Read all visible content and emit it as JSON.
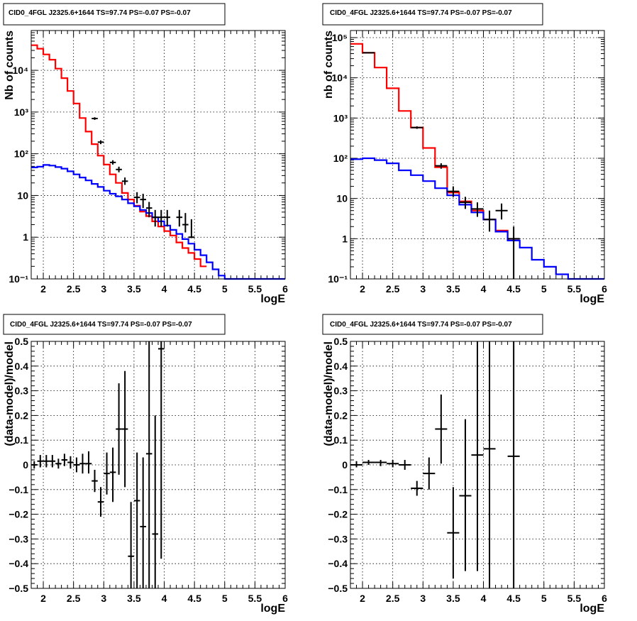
{
  "colors": {
    "model": "#ff0000",
    "component": "#0000ff",
    "data": "#000000"
  },
  "chart_data": [
    {
      "type": "line",
      "title": "CID0_4FGL J2325.6+1644 TS=97.74 PS=-0.07 PS=-0.07",
      "xlabel": "logE",
      "ylabel": "Nb of counts",
      "xlim": [
        1.8,
        6.0
      ],
      "ylim": [
        0.1,
        90000
      ],
      "yscale": "log",
      "grid": true,
      "xticks": [
        "2",
        "2.5",
        "3",
        "3.5",
        "4",
        "4.5",
        "5",
        "5.5",
        "6"
      ],
      "yticks": [
        "10⁻¹",
        "1",
        "10",
        "10²",
        "10³",
        "10⁴"
      ],
      "series": [
        {
          "role": "model",
          "style": "step",
          "bin_width": 0.1,
          "x": [
            1.8,
            1.9,
            2.0,
            2.1,
            2.2,
            2.3,
            2.4,
            2.5,
            2.6,
            2.7,
            2.8,
            2.9,
            3.0,
            3.1,
            3.2,
            3.3,
            3.4,
            3.5,
            3.6,
            3.7,
            3.8,
            3.9,
            4.0,
            4.1,
            4.2,
            4.3,
            4.4,
            4.5,
            4.6
          ],
          "y": [
            40000,
            33000,
            24000,
            18000,
            11000,
            6500,
            3200,
            1600,
            720,
            340,
            170,
            90,
            55,
            32,
            20,
            11.5,
            8,
            5.7,
            4.1,
            3.2,
            2.4,
            1.8,
            1.4,
            1.1,
            0.75,
            0.55,
            0.42,
            0.3,
            0.2
          ]
        },
        {
          "role": "component",
          "style": "step",
          "bin_width": 0.1,
          "x": [
            1.8,
            1.9,
            2.0,
            2.1,
            2.2,
            2.3,
            2.4,
            2.5,
            2.6,
            2.7,
            2.8,
            2.9,
            3.0,
            3.1,
            3.2,
            3.3,
            3.4,
            3.5,
            3.6,
            3.7,
            3.8,
            3.9,
            4.0,
            4.1,
            4.2,
            4.3,
            4.4,
            4.5,
            4.6,
            4.7,
            4.8,
            4.9,
            5.0,
            5.1,
            5.2,
            5.3,
            5.4,
            5.5,
            5.6,
            5.7,
            5.8,
            5.9
          ],
          "y": [
            47,
            49,
            54,
            52,
            48,
            44,
            38,
            32,
            27,
            23,
            19,
            16,
            13,
            11,
            9.5,
            8,
            6.5,
            5.5,
            4.5,
            3.8,
            3,
            2.4,
            1.9,
            1.5,
            1.2,
            0.9,
            0.7,
            0.5,
            0.37,
            0.25,
            0.17,
            0.12,
            0.1,
            0.1,
            0.1,
            0.1,
            0.1,
            0.1,
            0.1,
            0.1,
            0.1,
            0.1
          ]
        },
        {
          "role": "data",
          "style": "errorbar",
          "x_halfwidth": 0.05,
          "x": [
            3.85,
            3.95,
            4.05,
            4.25,
            4.35,
            4.45
          ],
          "y": [
            3,
            3,
            3,
            3,
            2,
            1
          ],
          "yerr": [
            [
              1.8,
              4.5
            ],
            [
              1.8,
              4.5
            ],
            [
              1.8,
              4.5
            ],
            [
              1.8,
              4.5
            ],
            [
              1.3,
              3.8
            ],
            [
              0.95,
              2.7
            ]
          ]
        },
        {
          "role": "data",
          "style": "errorbar",
          "x_halfwidth": 0.05,
          "x": [
            2.85,
            2.95,
            3.15,
            3.25,
            3.35,
            3.55,
            3.65,
            3.75
          ],
          "y": [
            700,
            190,
            62,
            42,
            22,
            9,
            8,
            5
          ],
          "yerr": [
            [
              650,
              750
            ],
            [
              170,
              210
            ],
            [
              55,
              70
            ],
            [
              36,
              49
            ],
            [
              18,
              27
            ],
            [
              6.5,
              12
            ],
            [
              5,
              11
            ],
            [
              3,
              7
            ]
          ]
        }
      ]
    },
    {
      "type": "line",
      "title": "CID0_4FGL J2325.6+1644 TS=97.74 PS=-0.07 PS=-0.07",
      "xlabel": "logE",
      "ylabel": "nb of counts",
      "xlim": [
        1.8,
        6.0
      ],
      "ylim": [
        0.1,
        150000
      ],
      "yscale": "log",
      "grid": true,
      "xticks": [
        "2",
        "2.5",
        "3",
        "3.5",
        "4",
        "4.5",
        "5",
        "5.5",
        "6"
      ],
      "yticks": [
        "10⁻¹",
        "1",
        "10",
        "10²",
        "10³",
        "10⁴",
        "10⁵"
      ],
      "series": [
        {
          "role": "model",
          "style": "step",
          "bin_width": 0.2,
          "x": [
            1.8,
            2.0,
            2.2,
            2.4,
            2.6,
            2.8,
            3.0,
            3.2,
            3.4,
            3.6,
            3.8,
            4.0,
            4.2,
            4.4
          ],
          "y": [
            70000,
            42000,
            18000,
            5500,
            1500,
            580,
            180,
            60,
            14,
            8.5,
            5,
            3,
            1.6,
            0.9
          ]
        },
        {
          "role": "component",
          "style": "step",
          "bin_width": 0.2,
          "x": [
            1.8,
            2.0,
            2.2,
            2.4,
            2.6,
            2.8,
            3.0,
            3.2,
            3.4,
            3.6,
            3.8,
            4.0,
            4.2,
            4.4,
            4.6,
            4.8,
            5.0,
            5.2,
            5.4,
            5.6,
            5.8
          ],
          "y": [
            95,
            100,
            90,
            75,
            50,
            38,
            27,
            18,
            12,
            7,
            4.5,
            3,
            1.5,
            0.9,
            0.6,
            0.3,
            0.2,
            0.13,
            0.1,
            0.1,
            0.1
          ]
        },
        {
          "role": "data",
          "style": "errorbar",
          "x_halfwidth": 0.1,
          "x": [
            2.1,
            2.9,
            3.3,
            3.5,
            3.7,
            3.9,
            4.1,
            4.3,
            4.5
          ],
          "y": [
            42000,
            580,
            65,
            15,
            8,
            5.5,
            3,
            5,
            1
          ],
          "yerr": [
            [
              41000,
              43000
            ],
            [
              540,
              620
            ],
            [
              55,
              75
            ],
            [
              11,
              20
            ],
            [
              5.5,
              11
            ],
            [
              3.5,
              8
            ],
            [
              1.5,
              5
            ],
            [
              3,
              7.5
            ],
            [
              0.1,
              2
            ]
          ]
        }
      ]
    },
    {
      "type": "line",
      "title": "CID0_4FGL J2325.6+1644 TS=97.74 PS=-0.07 PS=-0.07",
      "xlabel": "logE",
      "ylabel": "(data-model)/model",
      "xlim": [
        1.8,
        6.0
      ],
      "ylim": [
        -0.5,
        0.5
      ],
      "yscale": "linear",
      "grid": true,
      "xticks": [
        "2",
        "2.5",
        "3",
        "3.5",
        "4",
        "4.5",
        "5",
        "5.5",
        "6"
      ],
      "yticks": [
        "−0.5",
        "−0.4",
        "−0.3",
        "−0.2",
        "−0.1",
        "0",
        "0.1",
        "0.2",
        "0.3",
        "0.4",
        "0.5"
      ],
      "series": [
        {
          "role": "data",
          "style": "errorbar",
          "x_halfwidth": 0.05,
          "x": [
            1.85,
            1.95,
            2.05,
            2.15,
            2.25,
            2.35,
            2.45,
            2.55,
            2.65,
            2.75,
            2.85,
            2.95,
            3.05,
            3.15,
            3.25,
            3.35,
            3.45,
            3.55,
            3.65,
            3.75,
            3.85,
            3.95
          ],
          "y": [
            0.0,
            0.015,
            0.015,
            0.015,
            0.005,
            0.02,
            0.01,
            0.0,
            0.005,
            0.005,
            -0.065,
            -0.15,
            -0.035,
            -0.03,
            0.145,
            0.145,
            -0.37,
            -0.145,
            -0.25,
            0.045,
            -0.28,
            0.47
          ],
          "yerr": [
            [
              -0.015,
              0.015
            ],
            [
              -0.01,
              0.04
            ],
            [
              -0.01,
              0.04
            ],
            [
              -0.01,
              0.04
            ],
            [
              -0.015,
              0.025
            ],
            [
              -0.005,
              0.045
            ],
            [
              -0.015,
              0.035
            ],
            [
              -0.03,
              0.03
            ],
            [
              -0.035,
              0.045
            ],
            [
              -0.035,
              0.055
            ],
            [
              -0.11,
              -0.02
            ],
            [
              -0.21,
              -0.09
            ],
            [
              -0.12,
              0.05
            ],
            [
              -0.15,
              0.07
            ],
            [
              -0.04,
              0.33
            ],
            [
              -0.09,
              0.38
            ],
            [
              -0.5,
              -0.15
            ],
            [
              -0.5,
              0.05
            ],
            [
              -0.5,
              0.03
            ],
            [
              -0.5,
              0.5
            ],
            [
              -0.5,
              0.2
            ],
            [
              -0.38,
              0.5
            ]
          ]
        }
      ]
    },
    {
      "type": "line",
      "title": "CID0_4FGL J2325.6+1644 TS=97.74 PS=-0.07 PS=-0.07",
      "xlabel": "logE",
      "ylabel": "(data-model)/model",
      "xlim": [
        1.8,
        6.0
      ],
      "ylim": [
        -0.5,
        0.5
      ],
      "yscale": "linear",
      "grid": true,
      "xticks": [
        "2",
        "2.5",
        "3",
        "3.5",
        "4",
        "4.5",
        "5",
        "5.5",
        "6"
      ],
      "yticks": [
        "−0.5",
        "−0.4",
        "−0.3",
        "−0.2",
        "−0.1",
        "0",
        "0.1",
        "0.2",
        "0.3",
        "0.4",
        "0.5"
      ],
      "series": [
        {
          "role": "data",
          "style": "errorbar",
          "x_halfwidth": 0.1,
          "x": [
            1.9,
            2.1,
            2.3,
            2.5,
            2.7,
            2.9,
            3.1,
            3.3,
            3.5,
            3.7,
            3.9,
            4.1,
            4.5
          ],
          "y": [
            0.0,
            0.01,
            0.01,
            0.005,
            0.0,
            -0.095,
            -0.035,
            0.145,
            -0.275,
            -0.125,
            0.04,
            0.065,
            0.035
          ],
          "yerr": [
            [
              -0.01,
              0.015
            ],
            [
              0.0,
              0.02
            ],
            [
              -0.005,
              0.02
            ],
            [
              -0.01,
              0.02
            ],
            [
              -0.02,
              0.02
            ],
            [
              -0.125,
              -0.065
            ],
            [
              -0.1,
              0.03
            ],
            [
              0.005,
              0.285
            ],
            [
              -0.46,
              -0.09
            ],
            [
              -0.43,
              0.185
            ],
            [
              -0.43,
              0.5
            ],
            [
              -0.5,
              0.5
            ],
            [
              -0.5,
              0.5
            ]
          ]
        }
      ]
    }
  ]
}
